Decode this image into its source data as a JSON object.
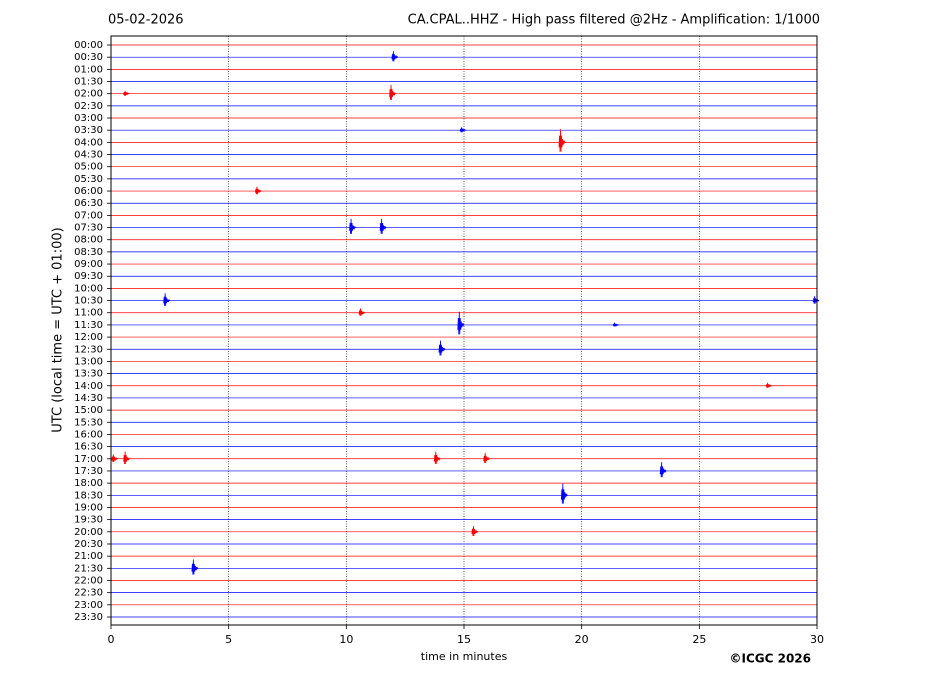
{
  "chart_data": {
    "type": "helicorder",
    "date": "05-02-2026",
    "title": "CA.CPAL..HHZ - High pass filtered @2Hz - Amplification: 1/1000",
    "y_label": "UTC (local time = UTC + 01:00)",
    "x_label": "time in minutes",
    "credit": "©ICGC 2026",
    "xlim": [
      0,
      30
    ],
    "xticks": [
      0,
      5,
      10,
      15,
      20,
      25,
      30
    ],
    "grid": true,
    "traces": [
      {
        "label": "00:00",
        "color": "#ff0000",
        "events": []
      },
      {
        "label": "00:30",
        "color": "#0000ff",
        "events": [
          {
            "x": 12.0,
            "amplitude": 0.4
          }
        ]
      },
      {
        "label": "01:00",
        "color": "#ff0000",
        "events": []
      },
      {
        "label": "01:30",
        "color": "#0000ff",
        "events": []
      },
      {
        "label": "02:00",
        "color": "#ff0000",
        "events": [
          {
            "x": 0.6,
            "amplitude": 0.2
          },
          {
            "x": 11.9,
            "amplitude": 0.6
          }
        ]
      },
      {
        "label": "02:30",
        "color": "#0000ff",
        "events": []
      },
      {
        "label": "03:00",
        "color": "#ff0000",
        "events": []
      },
      {
        "label": "03:30",
        "color": "#0000ff",
        "events": [
          {
            "x": 14.9,
            "amplitude": 0.2
          }
        ]
      },
      {
        "label": "04:00",
        "color": "#ff0000",
        "events": [
          {
            "x": 19.1,
            "amplitude": 0.9
          }
        ]
      },
      {
        "label": "04:30",
        "color": "#0000ff",
        "events": []
      },
      {
        "label": "05:00",
        "color": "#ff0000",
        "events": []
      },
      {
        "label": "05:30",
        "color": "#0000ff",
        "events": []
      },
      {
        "label": "06:00",
        "color": "#ff0000",
        "events": [
          {
            "x": 6.2,
            "amplitude": 0.3
          }
        ]
      },
      {
        "label": "06:30",
        "color": "#0000ff",
        "events": []
      },
      {
        "label": "07:00",
        "color": "#ff0000",
        "events": []
      },
      {
        "label": "07:30",
        "color": "#0000ff",
        "events": [
          {
            "x": 10.2,
            "amplitude": 0.6
          },
          {
            "x": 11.5,
            "amplitude": 0.6
          }
        ]
      },
      {
        "label": "08:00",
        "color": "#ff0000",
        "events": []
      },
      {
        "label": "08:30",
        "color": "#0000ff",
        "events": []
      },
      {
        "label": "09:00",
        "color": "#ff0000",
        "events": []
      },
      {
        "label": "09:30",
        "color": "#0000ff",
        "events": []
      },
      {
        "label": "10:00",
        "color": "#ff0000",
        "events": []
      },
      {
        "label": "10:30",
        "color": "#0000ff",
        "events": [
          {
            "x": 2.3,
            "amplitude": 0.5
          },
          {
            "x": 29.9,
            "amplitude": 0.3
          }
        ]
      },
      {
        "label": "11:00",
        "color": "#ff0000",
        "events": [
          {
            "x": 10.6,
            "amplitude": 0.3
          }
        ]
      },
      {
        "label": "11:30",
        "color": "#0000ff",
        "events": [
          {
            "x": 14.8,
            "amplitude": 0.9
          },
          {
            "x": 21.4,
            "amplitude": 0.15
          }
        ]
      },
      {
        "label": "12:00",
        "color": "#ff0000",
        "events": []
      },
      {
        "label": "12:30",
        "color": "#0000ff",
        "events": [
          {
            "x": 14.0,
            "amplitude": 0.6
          }
        ]
      },
      {
        "label": "13:00",
        "color": "#ff0000",
        "events": []
      },
      {
        "label": "13:30",
        "color": "#0000ff",
        "events": []
      },
      {
        "label": "14:00",
        "color": "#ff0000",
        "events": [
          {
            "x": 27.9,
            "amplitude": 0.2
          }
        ]
      },
      {
        "label": "14:30",
        "color": "#0000ff",
        "events": []
      },
      {
        "label": "15:00",
        "color": "#ff0000",
        "events": []
      },
      {
        "label": "15:30",
        "color": "#0000ff",
        "events": []
      },
      {
        "label": "16:00",
        "color": "#ff0000",
        "events": []
      },
      {
        "label": "16:30",
        "color": "#0000ff",
        "events": []
      },
      {
        "label": "17:00",
        "color": "#ff0000",
        "events": [
          {
            "x": 0.1,
            "amplitude": 0.3
          },
          {
            "x": 0.6,
            "amplitude": 0.5
          },
          {
            "x": 13.8,
            "amplitude": 0.5
          },
          {
            "x": 15.9,
            "amplitude": 0.4
          }
        ]
      },
      {
        "label": "17:30",
        "color": "#0000ff",
        "events": [
          {
            "x": 23.4,
            "amplitude": 0.6
          }
        ]
      },
      {
        "label": "18:00",
        "color": "#ff0000",
        "events": []
      },
      {
        "label": "18:30",
        "color": "#0000ff",
        "events": [
          {
            "x": 19.2,
            "amplitude": 0.8
          }
        ]
      },
      {
        "label": "19:00",
        "color": "#ff0000",
        "events": []
      },
      {
        "label": "19:30",
        "color": "#0000ff",
        "events": []
      },
      {
        "label": "20:00",
        "color": "#ff0000",
        "events": [
          {
            "x": 15.4,
            "amplitude": 0.4
          }
        ]
      },
      {
        "label": "20:30",
        "color": "#0000ff",
        "events": []
      },
      {
        "label": "21:00",
        "color": "#ff0000",
        "events": []
      },
      {
        "label": "21:30",
        "color": "#0000ff",
        "events": [
          {
            "x": 3.5,
            "amplitude": 0.6
          }
        ]
      },
      {
        "label": "22:00",
        "color": "#ff0000",
        "events": []
      },
      {
        "label": "22:30",
        "color": "#0000ff",
        "events": []
      },
      {
        "label": "23:00",
        "color": "#ff0000",
        "events": []
      },
      {
        "label": "23:30",
        "color": "#0000ff",
        "events": []
      }
    ]
  }
}
